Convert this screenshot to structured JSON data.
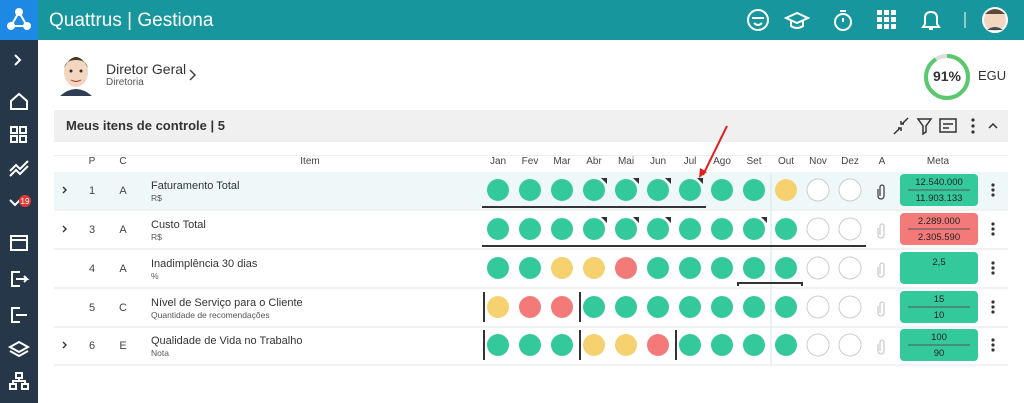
{
  "app": {
    "title": "Quattrus | Gestiona",
    "notifications": "19"
  },
  "profile": {
    "name": "Diretor Geral",
    "department": "Diretoria",
    "score": {
      "value": 91,
      "label": "91%"
    },
    "score_label": "EGU"
  },
  "panel": {
    "title": "Meus itens de controle | 5"
  },
  "table": {
    "headers": {
      "p": "P",
      "c": "C",
      "item": "Item",
      "a": "A",
      "meta": "Meta"
    },
    "months": [
      "Jan",
      "Fev",
      "Mar",
      "Abr",
      "Mai",
      "Jun",
      "Jul",
      "Ago",
      "Set",
      "Out",
      "Nov",
      "Dez"
    ],
    "rows": [
      {
        "expandable": true,
        "highlight": true,
        "p": "1",
        "c": "A",
        "item": "Faturamento Total",
        "unit": "R$",
        "status": [
          "green",
          "green",
          "green",
          "green",
          "green",
          "green",
          "green",
          "green",
          "green",
          "yellow",
          "empty",
          "empty"
        ],
        "meta": [
          "12.540.000",
          "11.903.133"
        ],
        "meta_status": "green"
      },
      {
        "expandable": true,
        "p": "3",
        "c": "A",
        "item": "Custo Total",
        "unit": "R$",
        "status": [
          "green",
          "green",
          "green",
          "green",
          "green",
          "green",
          "green",
          "green",
          "green",
          "green",
          "empty",
          "empty"
        ],
        "meta": [
          "2.289.000",
          "2.305.590"
        ],
        "meta_status": "red"
      },
      {
        "expandable": false,
        "p": "4",
        "c": "A",
        "item": "Inadimplência 30 dias",
        "unit": "%",
        "status": [
          "green",
          "green",
          "yellow",
          "yellow",
          "red",
          "green",
          "green",
          "green",
          "green",
          "green",
          "empty",
          "empty"
        ],
        "meta": [
          "2,5"
        ],
        "meta_status": "green"
      },
      {
        "expandable": false,
        "p": "5",
        "c": "C",
        "item": "Nível de Serviço para o Cliente",
        "unit": "Quantidade de recomendações",
        "status": [
          "yellow",
          "red",
          "red",
          "green",
          "green",
          "green",
          "green",
          "green",
          "green",
          "green",
          "empty",
          "empty"
        ],
        "meta": [
          "15",
          "10"
        ],
        "meta_status": "green"
      },
      {
        "expandable": true,
        "p": "6",
        "c": "E",
        "item": "Qualidade de Vida no Trabalho",
        "unit": "Nota",
        "status": [
          "green",
          "green",
          "green",
          "yellow",
          "yellow",
          "red",
          "green",
          "green",
          "green",
          "green",
          "empty",
          "empty"
        ],
        "meta": [
          "100",
          "90"
        ],
        "meta_status": "green"
      }
    ]
  }
}
